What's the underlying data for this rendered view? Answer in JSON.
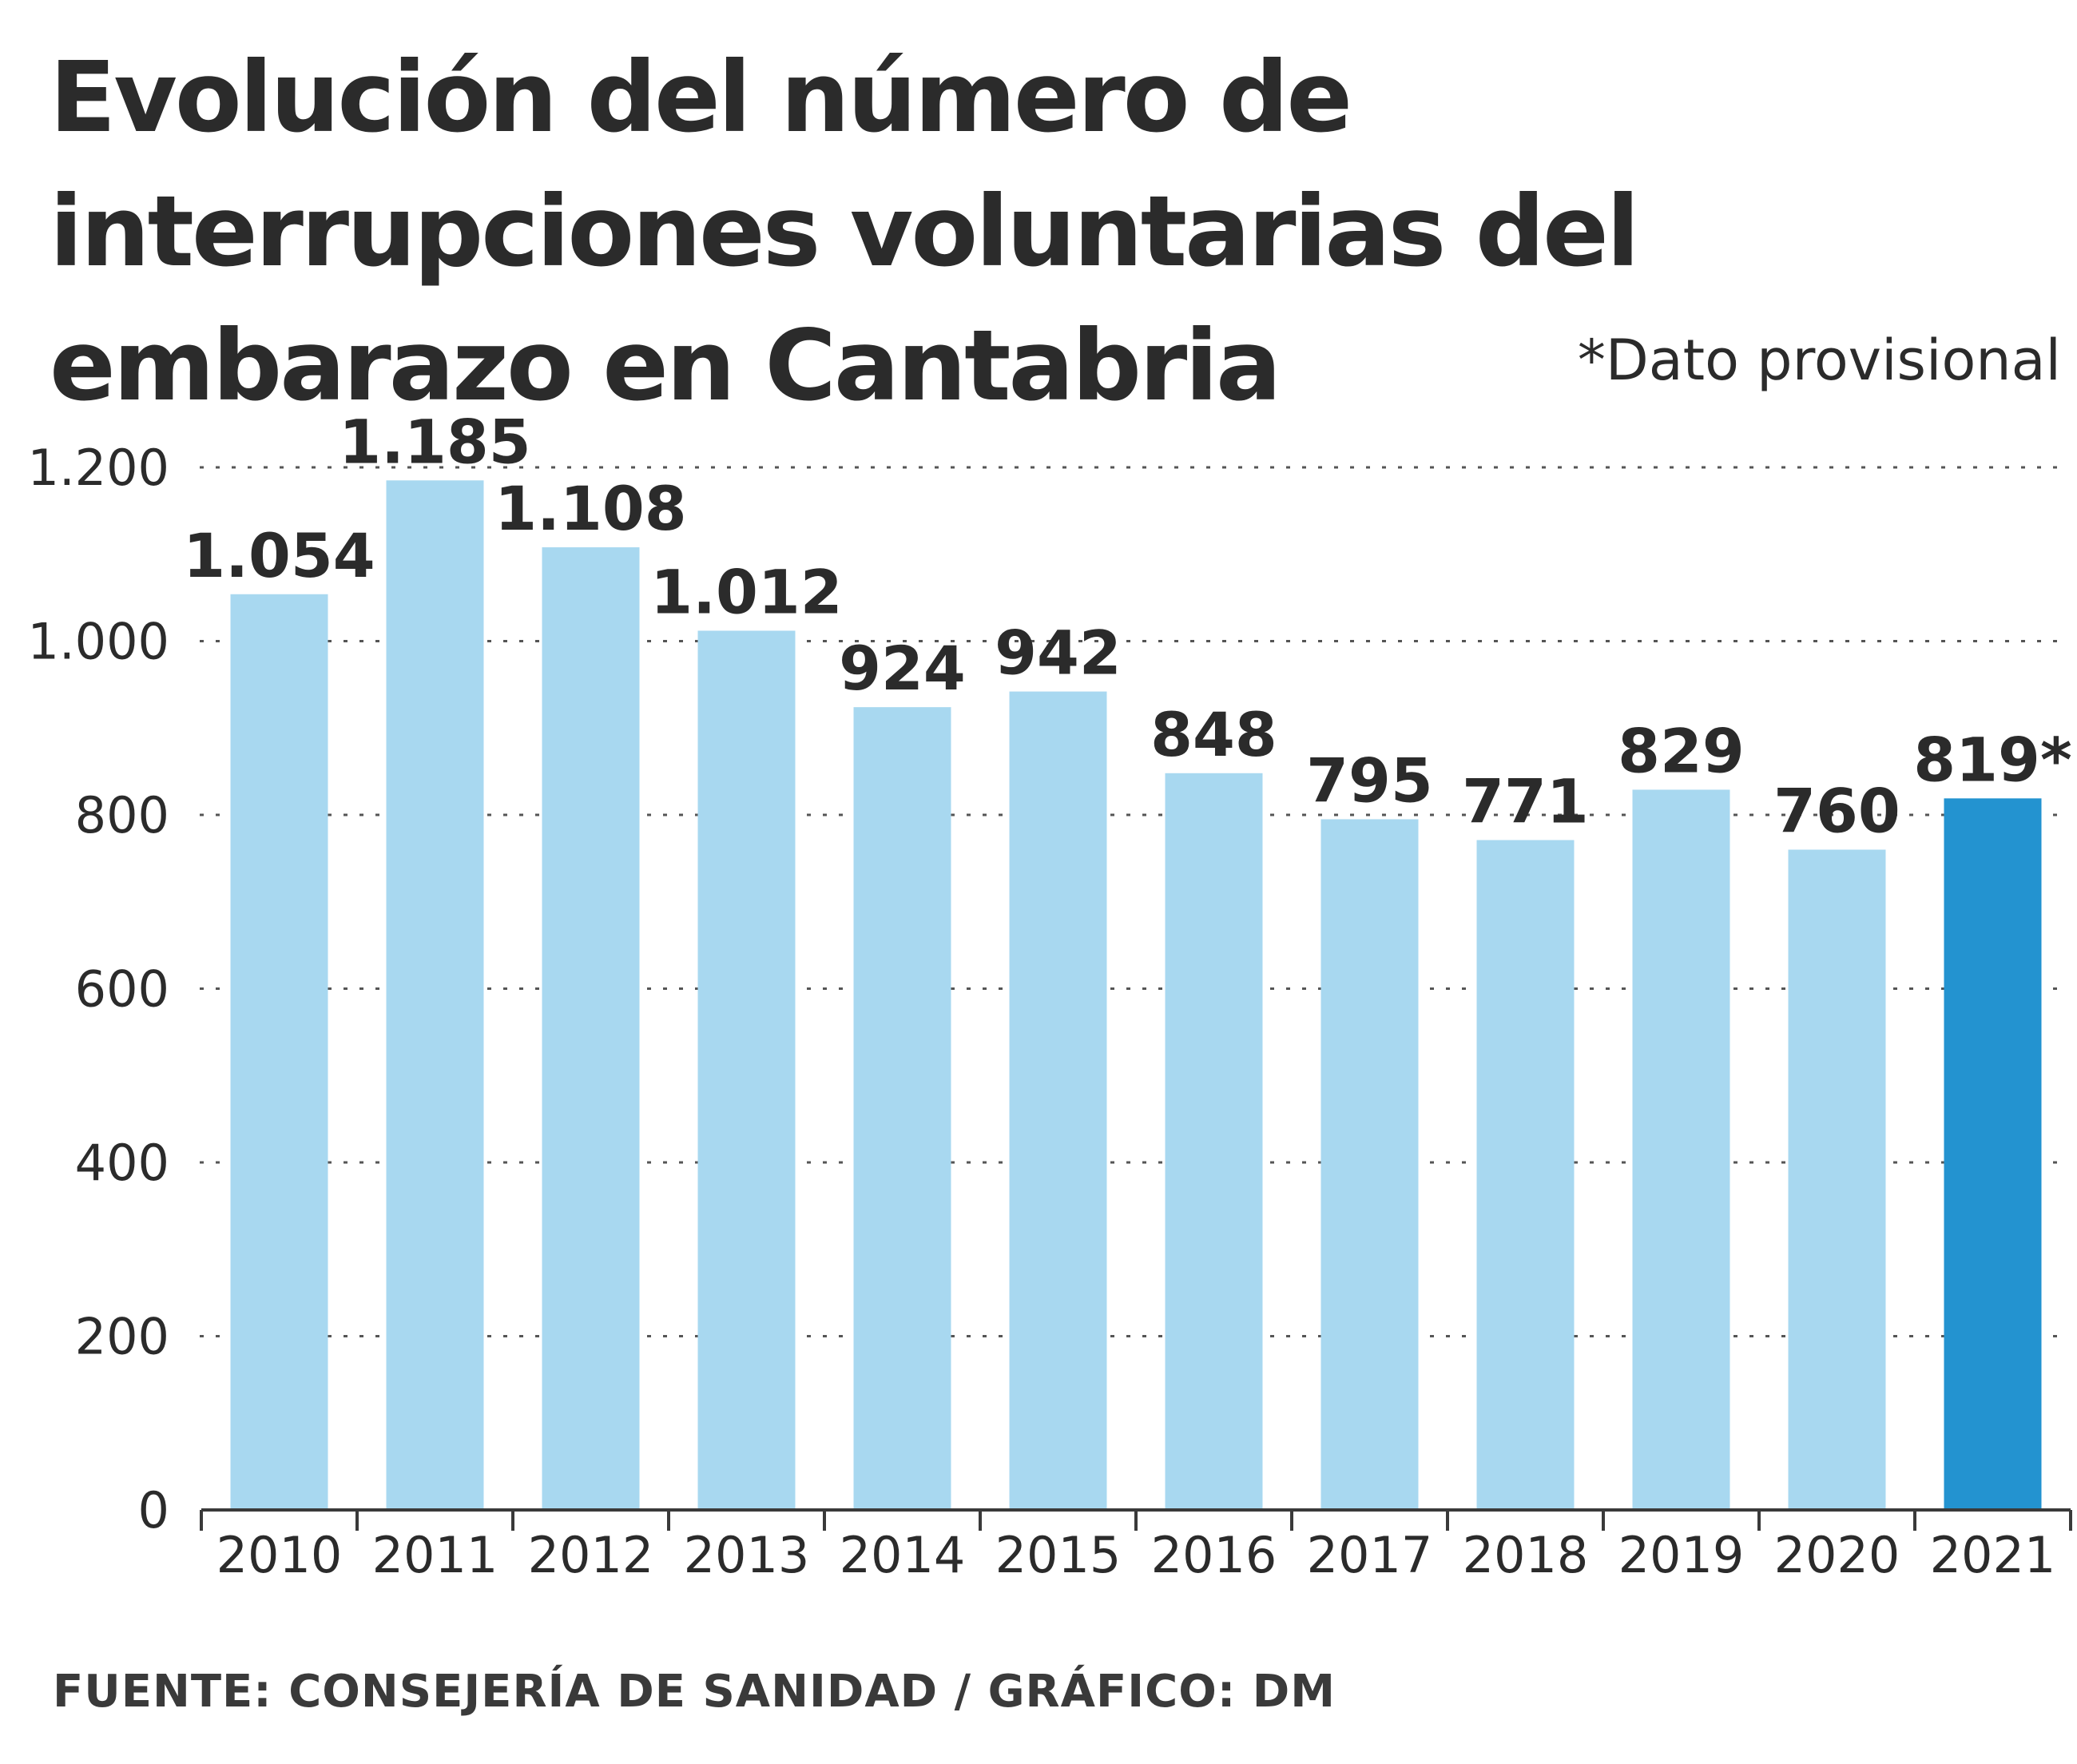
{
  "chart_data": {
    "type": "bar",
    "title": "Evolución del número de interrupciones voluntarias del embarazo en Cantabria",
    "note": "*Dato provisional",
    "source": "FUENTE: CONSEJERÍA DE SANIDAD / GRÁFICO: DM",
    "xlabel": "",
    "ylabel": "",
    "ylim": [
      0,
      1200
    ],
    "yticks": [
      0,
      200,
      400,
      600,
      800,
      1000,
      1200
    ],
    "ytick_labels": [
      "0",
      "200",
      "400",
      "600",
      "800",
      "1.000",
      "1.200"
    ],
    "grid": "dotted horizontal",
    "categories": [
      "2010",
      "2011",
      "2012",
      "2013",
      "2014",
      "2015",
      "2016",
      "2017",
      "2018",
      "2019",
      "2020",
      "2021"
    ],
    "values": [
      1054,
      1185,
      1108,
      1012,
      924,
      942,
      848,
      795,
      771,
      829,
      760,
      819
    ],
    "value_labels": [
      "1.054",
      "1.185",
      "1.108",
      "1.012",
      "924",
      "942",
      "848",
      "795",
      "771",
      "829",
      "760",
      "819*"
    ],
    "highlight": {
      "category": "2021",
      "note": "provisional"
    },
    "colors": {
      "bar": "#a8d8f0",
      "bar_highlight": "#2393d0",
      "text": "#2b2b2b",
      "grid": "#555555"
    }
  }
}
